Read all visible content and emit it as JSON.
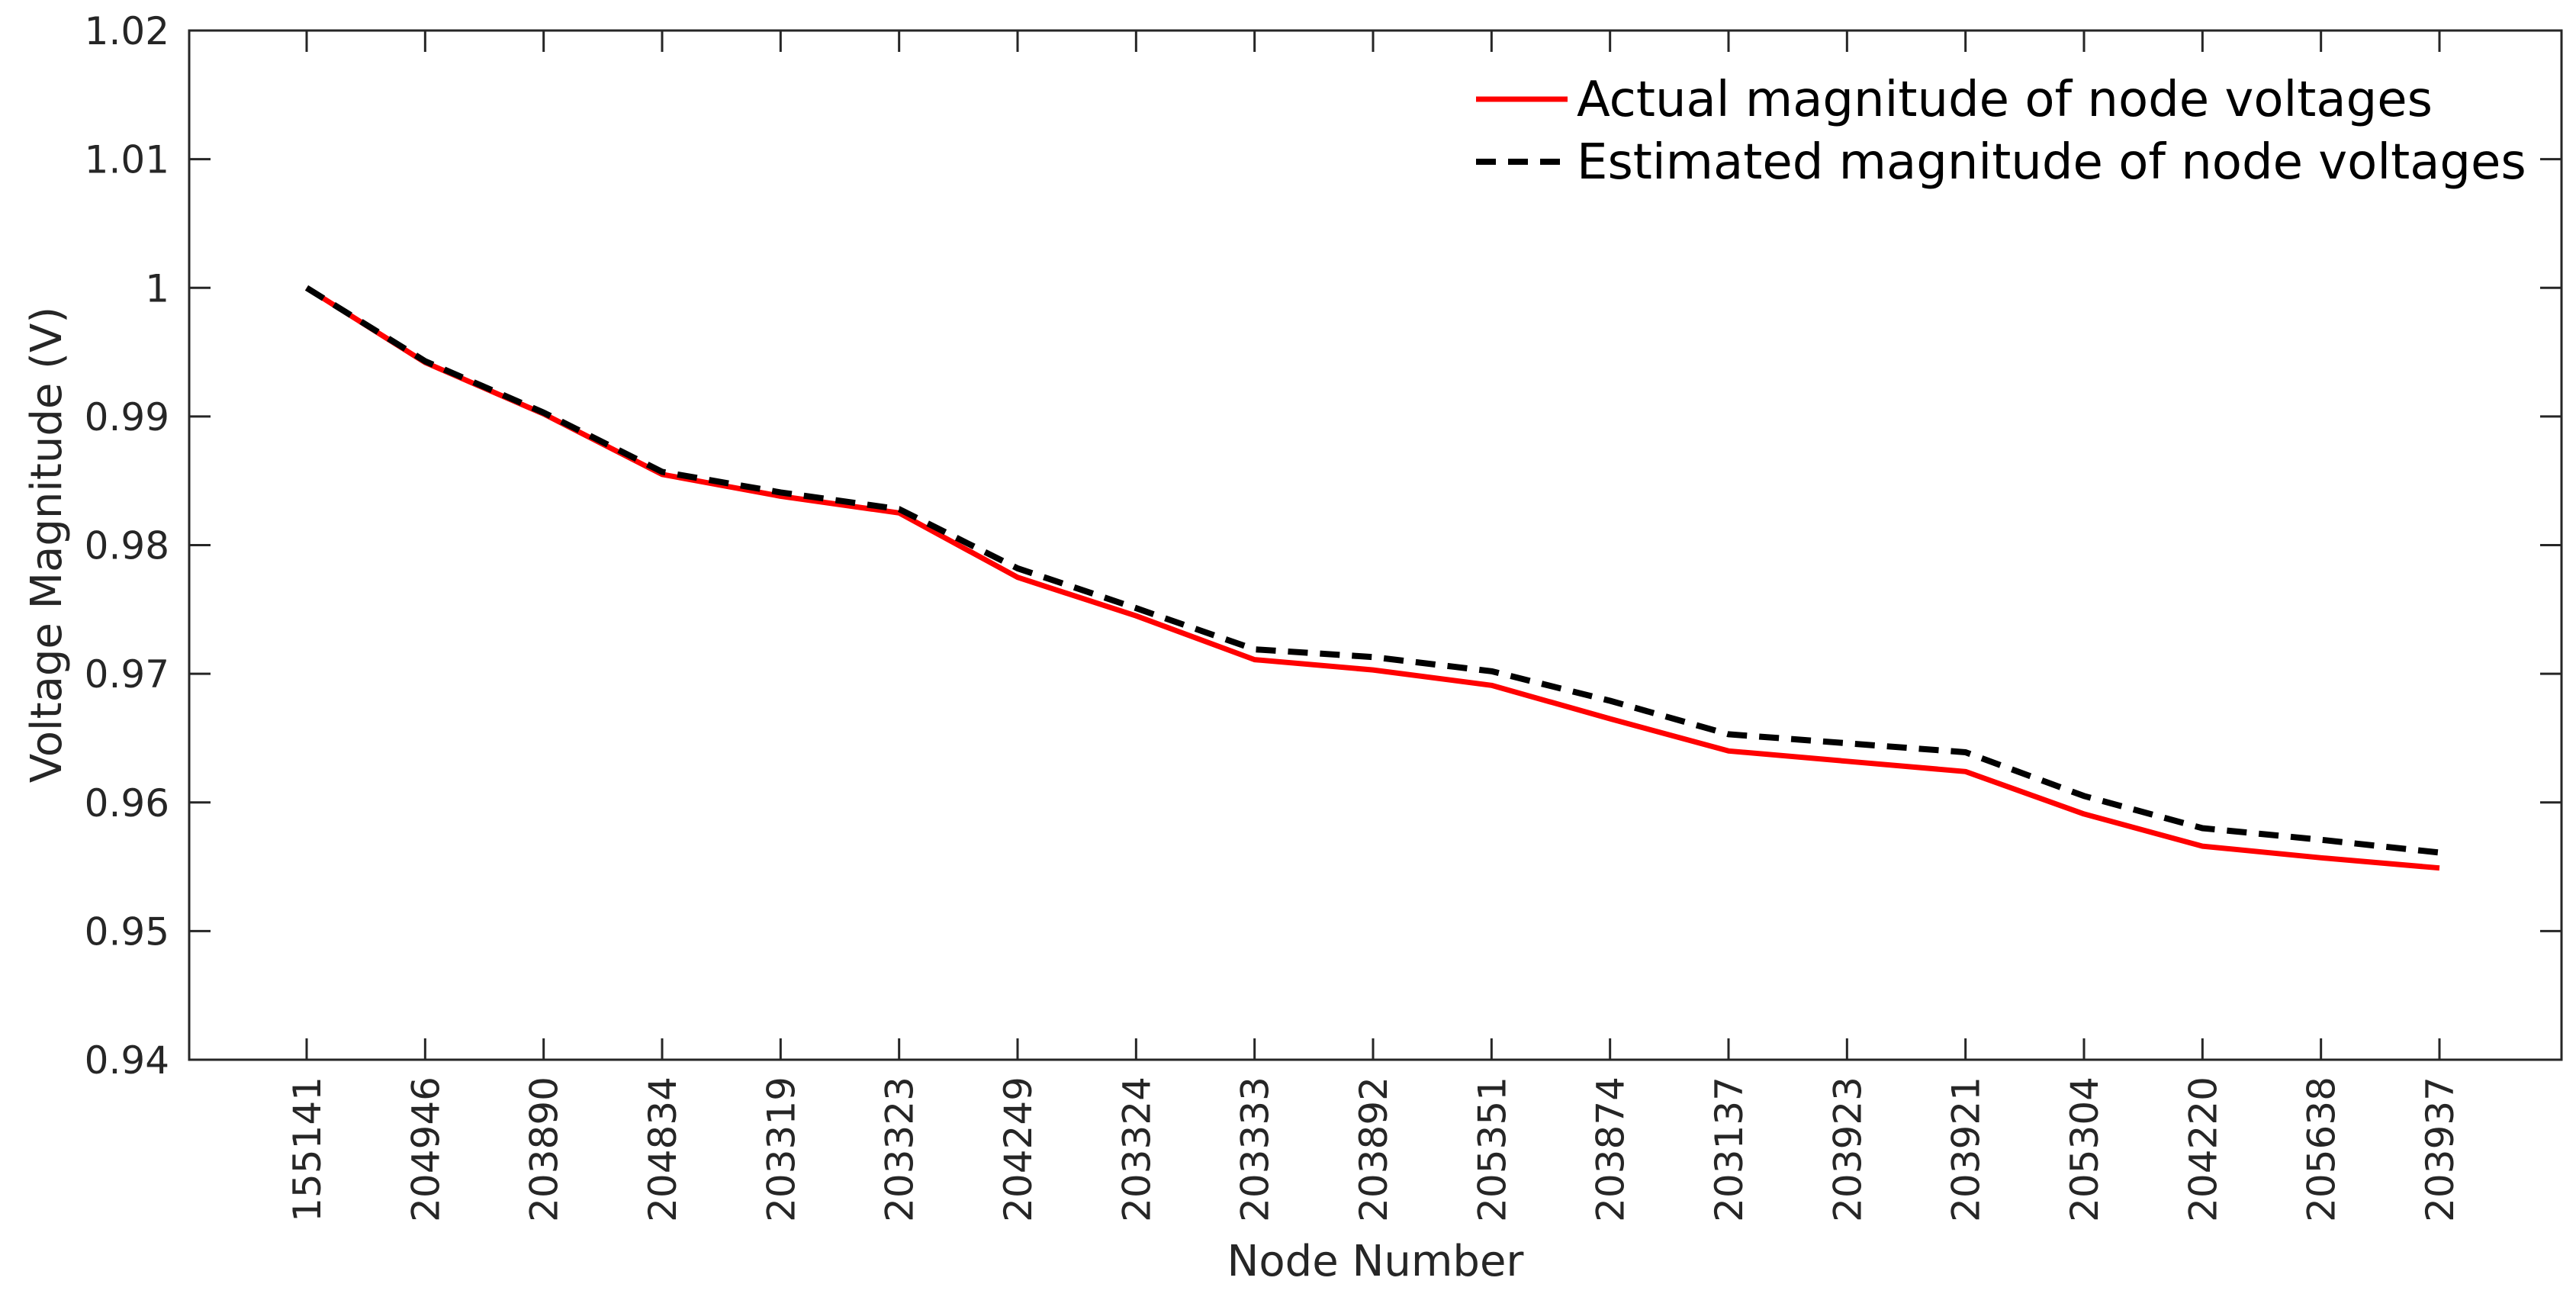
{
  "chart_data": {
    "type": "line",
    "title": "",
    "xlabel": "Node Number",
    "ylabel": "Voltage Magnitude (V)",
    "ylim": [
      0.94,
      1.02
    ],
    "yticks": [
      "0.94",
      "0.95",
      "0.96",
      "0.97",
      "0.98",
      "0.99",
      "1",
      "1.01",
      "1.02"
    ],
    "categories": [
      "155141",
      "204946",
      "203890",
      "204834",
      "203319",
      "203323",
      "204249",
      "203324",
      "203333",
      "203892",
      "205351",
      "203874",
      "203137",
      "203923",
      "203921",
      "205304",
      "204220",
      "205638",
      "203937"
    ],
    "grid": false,
    "legend_position": "top-right",
    "series": [
      {
        "name": "Actual magnitude of node voltages",
        "color": "#ff0000",
        "style": "solid",
        "values": [
          1.0,
          0.9942,
          0.9902,
          0.9855,
          0.9838,
          0.9825,
          0.9775,
          0.9745,
          0.9711,
          0.9703,
          0.9691,
          0.9665,
          0.964,
          0.9632,
          0.9624,
          0.9591,
          0.9566,
          0.9557,
          0.9549
        ]
      },
      {
        "name": "Estimated magnitude of node voltages",
        "color": "#000000",
        "style": "dashed",
        "values": [
          1.0,
          0.9943,
          0.9903,
          0.9857,
          0.9841,
          0.9828,
          0.9782,
          0.9751,
          0.9719,
          0.9713,
          0.9702,
          0.9679,
          0.9653,
          0.9646,
          0.9639,
          0.9605,
          0.958,
          0.9571,
          0.9561
        ]
      }
    ]
  }
}
